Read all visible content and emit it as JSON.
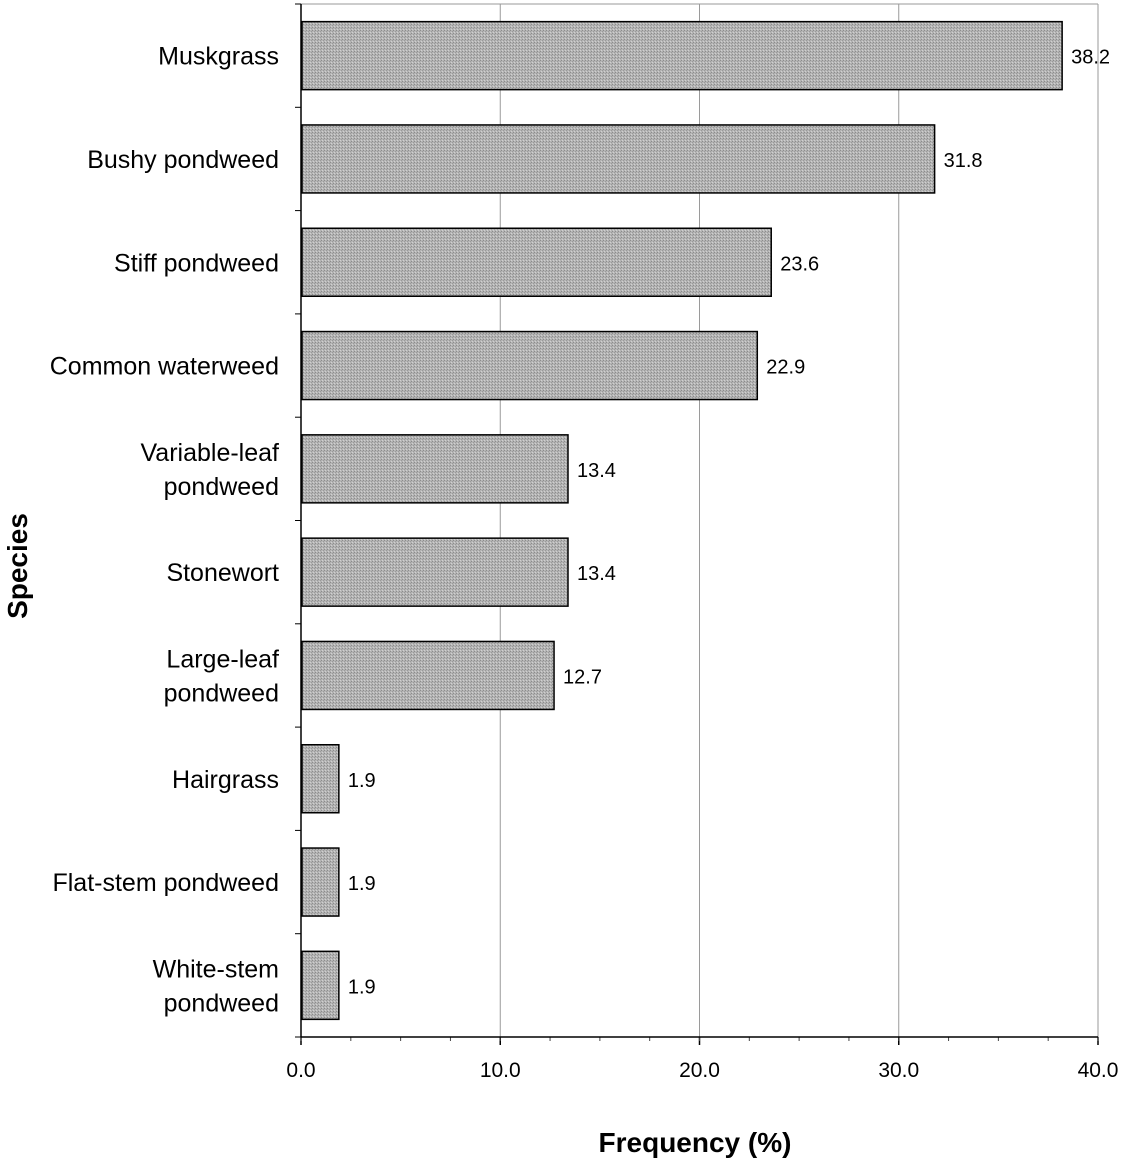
{
  "chart_data": {
    "type": "bar",
    "orientation": "horizontal",
    "title": "",
    "xlabel": "Frequency (%)",
    "ylabel": "Species",
    "xlim": [
      0,
      40
    ],
    "x_ticks": [
      "0.0",
      "10.0",
      "20.0",
      "30.0",
      "40.0"
    ],
    "x_tick_values": [
      0,
      10,
      20,
      30,
      40
    ],
    "grid": true,
    "legend": "none",
    "bar_color": "#b0b0b0",
    "categories": [
      "Muskgrass",
      "Bushy pondweed",
      "Stiff pondweed",
      "Common waterweed",
      "Variable-leaf pondweed",
      "Stonewort",
      "Large-leaf pondweed",
      "Hairgrass",
      "Flat-stem pondweed",
      "White-stem pondweed"
    ],
    "values": [
      38.2,
      31.8,
      23.6,
      22.9,
      13.4,
      13.4,
      12.7,
      1.9,
      1.9,
      1.9
    ],
    "value_labels": [
      "38.2",
      "31.8",
      "23.6",
      "22.9",
      "13.4",
      "13.4",
      "12.7",
      "1.9",
      "1.9",
      "1.9"
    ]
  }
}
